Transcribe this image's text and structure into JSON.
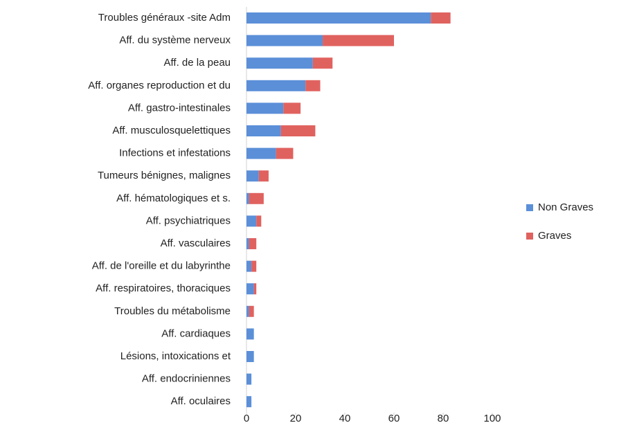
{
  "chart_data": {
    "type": "stacked_barh",
    "categories": [
      "Troubles généraux -site Adm",
      "Aff. du système nerveux",
      "Aff. de la peau",
      "Aff.  organes reproduction et du",
      "Aff. gastro-intestinales",
      "Aff. musculosquelettiques",
      "Infections et infestations",
      "Tumeurs bénignes, malignes",
      "Aff. hématologiques et s.",
      "Aff. psychiatriques",
      "Aff. vasculaires",
      "Aff. de l'oreille et du labyrinthe",
      "Aff. respiratoires, thoraciques",
      "Troubles du métabolisme",
      "Aff. cardiaques",
      "Lésions, intoxications et",
      "Aff. endocriniennes",
      "Aff. oculaires"
    ],
    "series": [
      {
        "name": "Non Graves",
        "color": "#5b8fd8",
        "values": [
          75,
          31,
          27,
          24,
          15,
          14,
          12,
          5,
          1,
          4,
          1,
          2,
          3,
          1,
          3,
          3,
          2,
          2
        ]
      },
      {
        "name": "Graves",
        "color": "#e0625f",
        "values": [
          8,
          29,
          8,
          6,
          7,
          14,
          7,
          4,
          6,
          2,
          3,
          2,
          1,
          2,
          0,
          0,
          0,
          0
        ]
      }
    ],
    "xlim": [
      0,
      100
    ],
    "xticks": [
      0,
      20,
      40,
      60,
      80,
      100
    ],
    "legend": "right"
  }
}
